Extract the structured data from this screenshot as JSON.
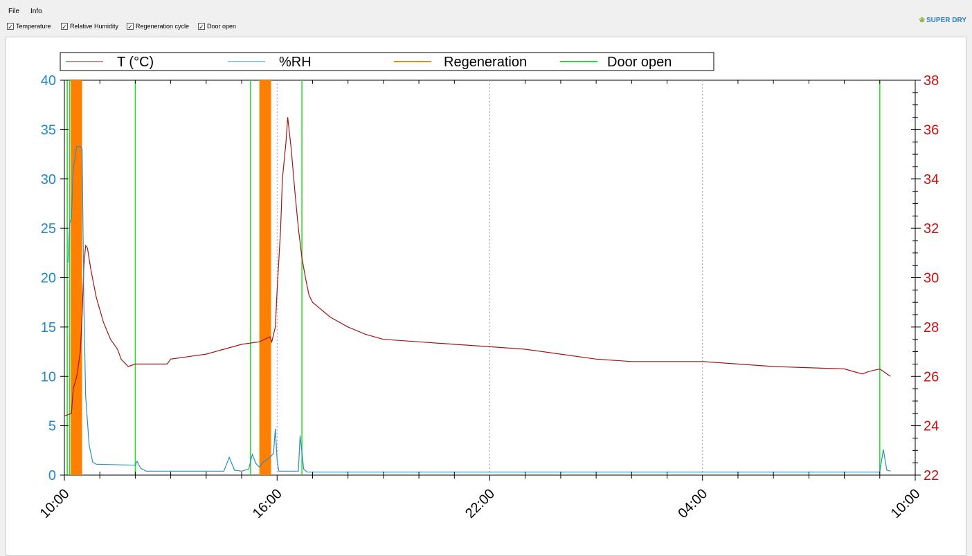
{
  "menu": {
    "file": "File",
    "info": "Info"
  },
  "toolbar": {
    "checkboxes": [
      {
        "label": "Temperature",
        "checked": true
      },
      {
        "label": "Relative Humidity",
        "checked": true
      },
      {
        "label": "Regeneration cycle",
        "checked": true
      },
      {
        "label": "Door open",
        "checked": true
      }
    ]
  },
  "logo": {
    "text": "SUPER DRY"
  },
  "chart_data": {
    "type": "line",
    "legend": [
      "T (°C)",
      "%RH",
      "Regeneration",
      "Door open"
    ],
    "colors": {
      "temp": "#a01515",
      "rh": "#2a8fc0",
      "regen": "#ff8000",
      "door": "#22dd22",
      "left_axis": "#1f88c8",
      "right_axis": "#cc1111"
    },
    "x_tick_labels": [
      "10:00",
      "16:00",
      "22:00",
      "04:00",
      "10:00"
    ],
    "x_range_hours": [
      0,
      24
    ],
    "y_left": {
      "ylim": [
        0,
        40
      ],
      "ticks": [
        0,
        5,
        10,
        15,
        20,
        25,
        30,
        35,
        40
      ]
    },
    "y_right": {
      "ylim": [
        22,
        38
      ],
      "ticks": [
        22,
        24,
        26,
        28,
        30,
        32,
        34,
        36,
        38
      ]
    },
    "grid_x": "dotted-vertical",
    "series": [
      {
        "name": "T (°C)",
        "axis": "right",
        "points": [
          [
            0,
            24.4
          ],
          [
            0.2,
            24.5
          ],
          [
            0.25,
            25.5
          ],
          [
            0.35,
            26
          ],
          [
            0.45,
            27
          ],
          [
            0.5,
            28.5
          ],
          [
            0.55,
            30.5
          ],
          [
            0.6,
            31.3
          ],
          [
            0.65,
            31.2
          ],
          [
            0.75,
            30.3
          ],
          [
            0.9,
            29.2
          ],
          [
            1.1,
            28.2
          ],
          [
            1.3,
            27.5
          ],
          [
            1.5,
            27.1
          ],
          [
            1.6,
            26.7
          ],
          [
            1.8,
            26.4
          ],
          [
            2,
            26.5
          ],
          [
            2.9,
            26.5
          ],
          [
            3,
            26.7
          ],
          [
            3.5,
            26.8
          ],
          [
            4,
            26.9
          ],
          [
            4.5,
            27.1
          ],
          [
            5,
            27.3
          ],
          [
            5.5,
            27.4
          ],
          [
            5.8,
            27.6
          ],
          [
            5.85,
            27.4
          ],
          [
            5.95,
            28
          ],
          [
            6,
            29.5
          ],
          [
            6.1,
            32
          ],
          [
            6.15,
            34
          ],
          [
            6.25,
            35.5
          ],
          [
            6.3,
            36.5
          ],
          [
            6.4,
            35.2
          ],
          [
            6.5,
            33.5
          ],
          [
            6.6,
            32
          ],
          [
            6.7,
            30.8
          ],
          [
            6.8,
            30
          ],
          [
            6.9,
            29.3
          ],
          [
            7,
            29
          ],
          [
            7.5,
            28.4
          ],
          [
            8,
            28
          ],
          [
            8.5,
            27.7
          ],
          [
            9,
            27.5
          ],
          [
            10,
            27.4
          ],
          [
            11,
            27.3
          ],
          [
            12,
            27.2
          ],
          [
            13,
            27.1
          ],
          [
            14,
            26.9
          ],
          [
            15,
            26.7
          ],
          [
            16,
            26.6
          ],
          [
            18,
            26.6
          ],
          [
            20,
            26.4
          ],
          [
            22,
            26.3
          ],
          [
            22.5,
            26.1
          ],
          [
            22.7,
            26.2
          ],
          [
            23,
            26.3
          ],
          [
            23.3,
            26
          ]
        ]
      },
      {
        "name": "%RH",
        "axis": "left",
        "points": [
          [
            0.1,
            21.5
          ],
          [
            0.15,
            25.5
          ],
          [
            0.2,
            26
          ],
          [
            0.25,
            31
          ],
          [
            0.35,
            33.3
          ],
          [
            0.45,
            33.3
          ],
          [
            0.5,
            33
          ],
          [
            0.55,
            17
          ],
          [
            0.6,
            8
          ],
          [
            0.7,
            3
          ],
          [
            0.8,
            1.3
          ],
          [
            0.9,
            1.1
          ],
          [
            2,
            1
          ],
          [
            2.05,
            1.4
          ],
          [
            2.15,
            0.7
          ],
          [
            2.3,
            0.4
          ],
          [
            4.5,
            0.4
          ],
          [
            4.65,
            1.8
          ],
          [
            4.8,
            0.5
          ],
          [
            5,
            0.4
          ],
          [
            5.2,
            0.6
          ],
          [
            5.3,
            2.1
          ],
          [
            5.4,
            1.2
          ],
          [
            5.5,
            0.8
          ],
          [
            5.6,
            1.3
          ],
          [
            5.8,
            1.8
          ],
          [
            5.9,
            2.2
          ],
          [
            5.95,
            4.7
          ],
          [
            6,
            1.5
          ],
          [
            6.05,
            0.4
          ],
          [
            6.6,
            0.4
          ],
          [
            6.65,
            4
          ],
          [
            6.75,
            0.6
          ],
          [
            6.85,
            0.3
          ],
          [
            23,
            0.3
          ],
          [
            23.1,
            2.6
          ],
          [
            23.2,
            0.5
          ],
          [
            23.3,
            0.4
          ]
        ]
      }
    ],
    "regeneration_intervals_hours": [
      [
        0.18,
        0.5
      ],
      [
        5.5,
        5.83
      ]
    ],
    "door_open_times_hours": [
      0.08,
      0.15,
      2.0,
      5.25,
      6.7,
      23.0
    ],
    "vertical_dotted_grid_hours": [
      6,
      12,
      18
    ]
  }
}
